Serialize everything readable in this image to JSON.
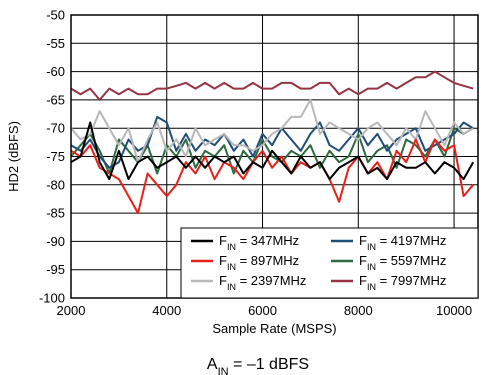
{
  "chart_data": {
    "type": "line",
    "xlabel": "Sample Rate (MSPS)",
    "ylabel": "HD2 (dBFS)",
    "caption_main": "A",
    "caption_sub": "IN",
    "caption_rest": " = –1 dBFS",
    "xlim": [
      2000,
      10500
    ],
    "ylim": [
      -100,
      -50
    ],
    "x_ticks": [
      2000,
      4000,
      6000,
      8000,
      10000
    ],
    "y_ticks": [
      -100,
      -95,
      -90,
      -85,
      -80,
      -75,
      -70,
      -65,
      -60,
      -55,
      -50
    ],
    "x_tick_labels": [
      "2000",
      "4000",
      "6000",
      "8000",
      "10000"
    ],
    "y_tick_labels": [
      "-100",
      "-95",
      "-90",
      "-85",
      "-80",
      "-75",
      "-70",
      "-65",
      "-60",
      "-55",
      "-50"
    ],
    "grid": true,
    "legend_placement": "bottom-right",
    "x": [
      2000,
      2200,
      2400,
      2600,
      2800,
      3000,
      3200,
      3400,
      3600,
      3800,
      4000,
      4200,
      4400,
      4600,
      4800,
      5000,
      5200,
      5400,
      5600,
      5800,
      6000,
      6200,
      6400,
      6600,
      6800,
      7000,
      7200,
      7400,
      7600,
      7800,
      8000,
      8200,
      8400,
      8600,
      8800,
      9000,
      9200,
      9400,
      9600,
      9800,
      10000,
      10200,
      10400
    ],
    "series": [
      {
        "name_main": "F",
        "name_sub": "IN",
        "name_rest": " = 347MHz",
        "color": "#000000",
        "values": [
          -76,
          -75,
          -69,
          -76,
          -79,
          -74,
          -79,
          -76,
          -75,
          -77,
          -76,
          -75,
          -77,
          -75,
          -77,
          -75,
          -76,
          -75,
          -78,
          -76,
          -77,
          -74,
          -76,
          -78,
          -75,
          -77,
          -76,
          -79,
          -77,
          -76,
          -75,
          -78,
          -77,
          -79,
          -76,
          -77,
          -77,
          -76,
          -78,
          -76,
          -77,
          -79,
          -76
        ]
      },
      {
        "name_main": "F",
        "name_sub": "IN",
        "name_rest": " = 897MHz",
        "color": "#e8201a",
        "values": [
          -74,
          -75,
          -73,
          -77,
          -78,
          -79,
          -82,
          -85,
          -78,
          -80,
          -82,
          -80,
          -76,
          -78,
          -75,
          -79,
          -76,
          -77,
          -79,
          -76,
          -74,
          -77,
          -75,
          -78,
          -76,
          -77,
          -76,
          -79,
          -83,
          -77,
          -75,
          -78,
          -76,
          -79,
          -74,
          -76,
          -72,
          -76,
          -72,
          -74,
          -73,
          -82,
          -80
        ]
      },
      {
        "name_main": "F",
        "name_sub": "IN",
        "name_rest": " = 2397MHz",
        "color": "#b8b8b8",
        "values": [
          -70,
          -72,
          -71,
          -67,
          -70,
          -73,
          -70,
          -76,
          -72,
          -69,
          -74,
          -72,
          -75,
          -70,
          -73,
          -72,
          -71,
          -73,
          -73,
          -74,
          -73,
          -71,
          -70,
          -68,
          -68,
          -65,
          -71,
          -69,
          -70,
          -71,
          -72,
          -70,
          -69,
          -71,
          -73,
          -70,
          -72,
          -67,
          -70,
          -73,
          -69,
          -71,
          -70
        ]
      },
      {
        "name_main": "F",
        "name_sub": "IN",
        "name_rest": " = 4197MHz",
        "color": "#1f4e79",
        "values": [
          -73,
          -74,
          -72,
          -75,
          -77,
          -76,
          -72,
          -74,
          -73,
          -68,
          -69,
          -74,
          -71,
          -74,
          -72,
          -73,
          -71,
          -74,
          -72,
          -75,
          -71,
          -73,
          -70,
          -72,
          -74,
          -71,
          -69,
          -73,
          -74,
          -72,
          -70,
          -73,
          -71,
          -74,
          -72,
          -71,
          -70,
          -74,
          -73,
          -72,
          -71,
          -69,
          -70
        ]
      },
      {
        "name_main": "F",
        "name_sub": "IN",
        "name_rest": " = 5597MHz",
        "color": "#2d6b3f",
        "values": [
          -75,
          -73,
          -71,
          -74,
          -78,
          -72,
          -74,
          -76,
          -73,
          -78,
          -73,
          -75,
          -72,
          -77,
          -74,
          -75,
          -73,
          -78,
          -74,
          -76,
          -72,
          -75,
          -76,
          -74,
          -75,
          -73,
          -77,
          -74,
          -76,
          -75,
          -71,
          -76,
          -74,
          -73,
          -77,
          -72,
          -73,
          -75,
          -72,
          -75,
          -70,
          -71,
          -70
        ]
      },
      {
        "name_main": "F",
        "name_sub": "IN",
        "name_rest": " = 7997MHz",
        "color": "#963344",
        "values": [
          -63,
          -64,
          -63,
          -65,
          -63,
          -64,
          -63,
          -64,
          -64,
          -63,
          -63,
          -62.5,
          -62,
          -63,
          -62,
          -63,
          -62,
          -63,
          -63,
          -62,
          -63,
          -63,
          -62,
          -62,
          -63,
          -63,
          -62,
          -62,
          -64,
          -63,
          -64,
          -63,
          -63,
          -62,
          -63,
          -62,
          -61,
          -61,
          -60,
          -61,
          -62,
          -62.5,
          -63
        ]
      }
    ]
  }
}
